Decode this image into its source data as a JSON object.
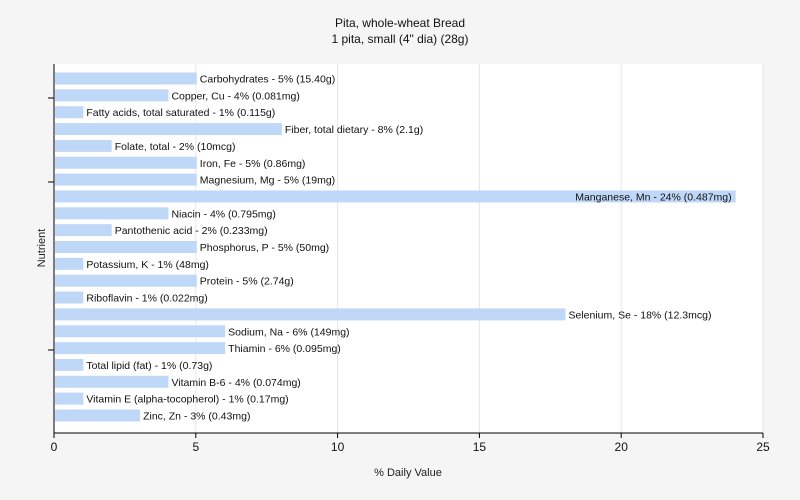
{
  "chart_data": {
    "type": "bar",
    "orientation": "horizontal",
    "title": "Pita, whole-wheat Bread",
    "subtitle": "1 pita, small  (4\" dia) (28g)",
    "xlabel": "% Daily Value",
    "ylabel": "Nutrient",
    "xlim": [
      0,
      25
    ],
    "xticks": [
      0,
      5,
      10,
      15,
      20,
      25
    ],
    "grid": true,
    "bar_color": "#c0d8f8",
    "categories": [
      "Carbohydrates",
      "Copper, Cu",
      "Fatty acids, total saturated",
      "Fiber, total dietary",
      "Folate, total",
      "Iron, Fe",
      "Magnesium, Mg",
      "Manganese, Mn",
      "Niacin",
      "Pantothenic acid",
      "Phosphorus, P",
      "Potassium, K",
      "Protein",
      "Riboflavin",
      "Selenium, Se",
      "Sodium, Na",
      "Thiamin",
      "Total lipid (fat)",
      "Vitamin B-6",
      "Vitamin E (alpha-tocopherol)",
      "Zinc, Zn"
    ],
    "values": [
      5,
      4,
      1,
      8,
      2,
      5,
      5,
      24,
      4,
      2,
      5,
      1,
      5,
      1,
      18,
      6,
      6,
      1,
      4,
      1,
      3
    ],
    "labels": [
      "Carbohydrates - 5% (15.40g)",
      "Copper, Cu - 4% (0.081mg)",
      "Fatty acids, total saturated - 1% (0.115g)",
      "Fiber, total dietary - 8% (2.1g)",
      "Folate, total - 2% (10mcg)",
      "Iron, Fe - 5% (0.86mg)",
      "Magnesium, Mg - 5% (19mg)",
      "Manganese, Mn - 24% (0.487mg)",
      "Niacin - 4% (0.795mg)",
      "Pantothenic acid - 2% (0.233mg)",
      "Phosphorus, P - 5% (50mg)",
      "Potassium, K - 1% (48mg)",
      "Protein - 5% (2.74g)",
      "Riboflavin - 1% (0.022mg)",
      "Selenium, Se - 18% (12.3mcg)",
      "Sodium, Na - 6% (149mg)",
      "Thiamin - 6% (0.095mg)",
      "Total lipid (fat) - 1% (0.73g)",
      "Vitamin B-6 - 4% (0.074mg)",
      "Vitamin E (alpha-tocopherol) - 1% (0.17mg)",
      "Zinc, Zn - 3% (0.43mg)"
    ]
  }
}
